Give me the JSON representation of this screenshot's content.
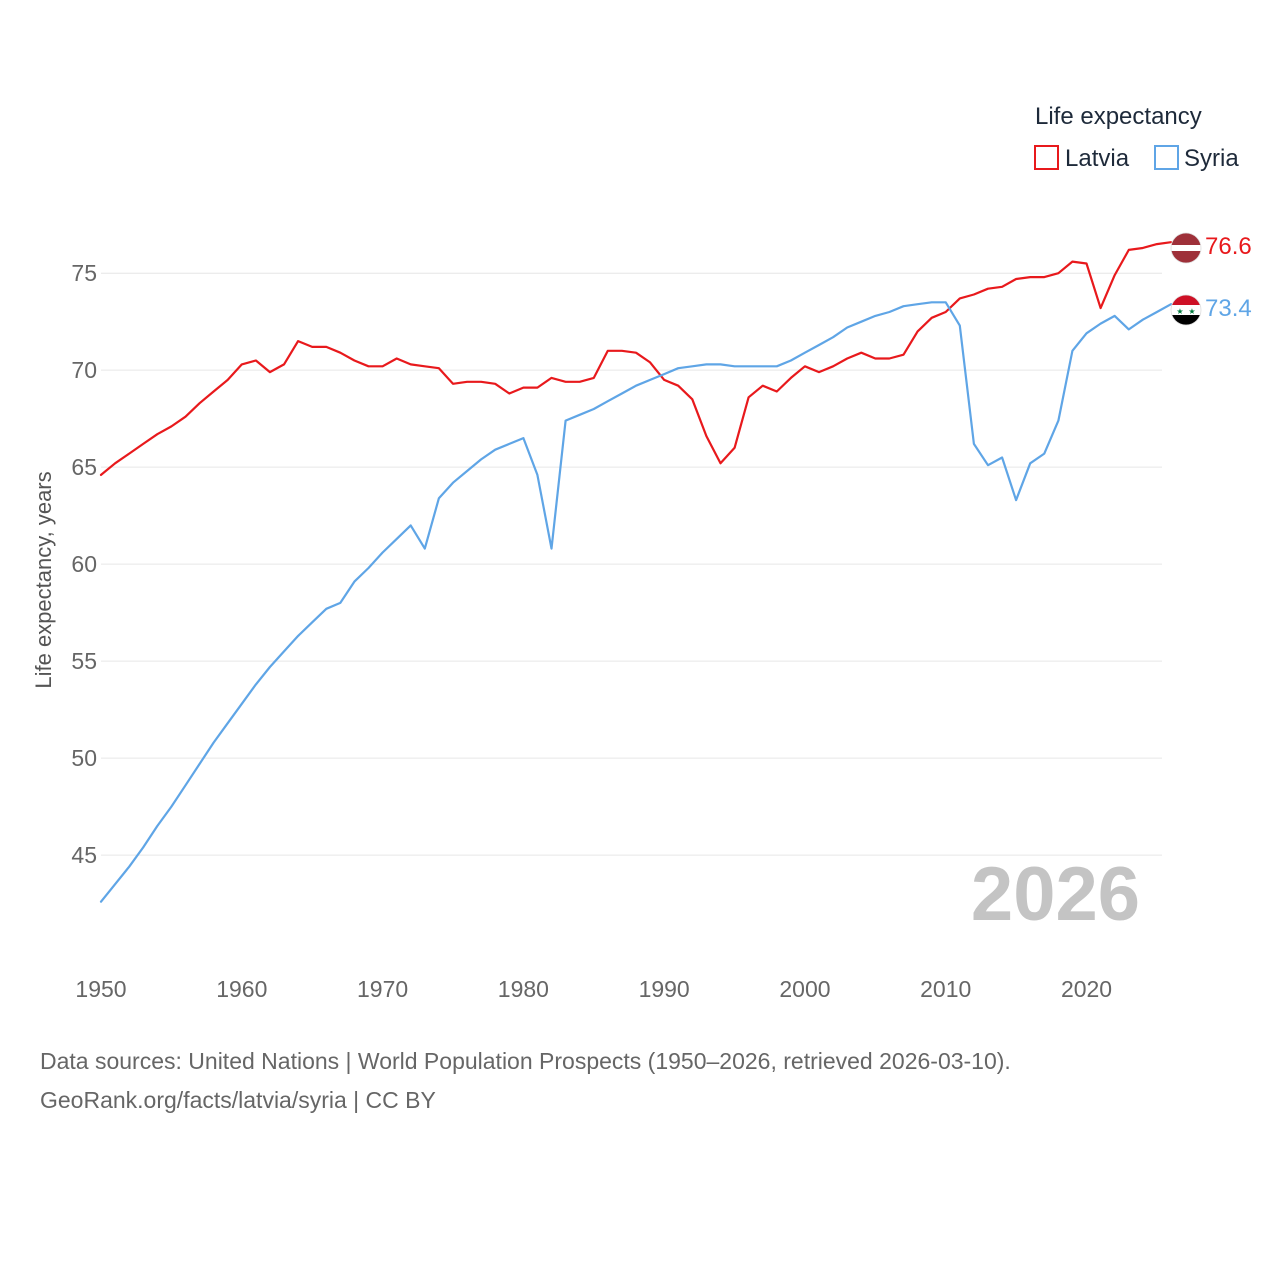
{
  "chart_data": {
    "type": "line",
    "ylabel": "Life expectancy, years",
    "xlim": [
      1950,
      2026
    ],
    "ylim": [
      41.5,
      78
    ],
    "xticks": [
      1950,
      1960,
      1970,
      1980,
      1990,
      2000,
      2010,
      2020
    ],
    "yticks": [
      45,
      50,
      55,
      60,
      65,
      70,
      75
    ],
    "year_label": "2026",
    "legend": {
      "title": "Life expectancy",
      "position": "top-right"
    },
    "x": [
      1950,
      1951,
      1952,
      1953,
      1954,
      1955,
      1956,
      1957,
      1958,
      1959,
      1960,
      1961,
      1962,
      1963,
      1964,
      1965,
      1966,
      1967,
      1968,
      1969,
      1970,
      1971,
      1972,
      1973,
      1974,
      1975,
      1976,
      1977,
      1978,
      1979,
      1980,
      1981,
      1982,
      1983,
      1984,
      1985,
      1986,
      1987,
      1988,
      1989,
      1990,
      1991,
      1992,
      1993,
      1994,
      1995,
      1996,
      1997,
      1998,
      1999,
      2000,
      2001,
      2002,
      2003,
      2004,
      2005,
      2006,
      2007,
      2008,
      2009,
      2010,
      2011,
      2012,
      2013,
      2014,
      2015,
      2016,
      2017,
      2018,
      2019,
      2020,
      2021,
      2022,
      2023,
      2024,
      2025,
      2026
    ],
    "series": [
      {
        "name": "Latvia",
        "color": "#e8191c",
        "end_label": "76.6",
        "flag": "latvia-flag-icon",
        "values": [
          64.6,
          65.2,
          65.7,
          66.2,
          66.7,
          67.1,
          67.6,
          68.3,
          68.9,
          69.5,
          70.3,
          70.5,
          69.9,
          70.3,
          71.5,
          71.2,
          71.2,
          70.9,
          70.5,
          70.2,
          70.2,
          70.6,
          70.3,
          70.2,
          70.1,
          69.3,
          69.4,
          69.4,
          69.3,
          68.8,
          69.1,
          69.1,
          69.6,
          69.4,
          69.4,
          69.6,
          71.0,
          71.0,
          70.9,
          70.4,
          69.5,
          69.2,
          68.5,
          66.6,
          65.2,
          66.0,
          68.6,
          69.2,
          68.9,
          69.6,
          70.2,
          69.9,
          70.2,
          70.6,
          70.9,
          70.6,
          70.6,
          70.8,
          72.0,
          72.7,
          73.0,
          73.7,
          73.9,
          74.2,
          74.3,
          74.7,
          74.8,
          74.8,
          75.0,
          75.6,
          75.5,
          73.2,
          74.9,
          76.2,
          76.3,
          76.5,
          76.6
        ]
      },
      {
        "name": "Syria",
        "color": "#5fa5e6",
        "end_label": "73.4",
        "flag": "syria-flag-icon",
        "values": [
          42.6,
          43.5,
          44.4,
          45.4,
          46.5,
          47.5,
          48.6,
          49.7,
          50.8,
          51.8,
          52.8,
          53.8,
          54.7,
          55.5,
          56.3,
          57.0,
          57.7,
          58.0,
          59.1,
          59.8,
          60.6,
          61.3,
          62.0,
          60.8,
          63.4,
          64.2,
          64.8,
          65.4,
          65.9,
          66.2,
          66.5,
          64.6,
          60.8,
          67.4,
          67.7,
          68.0,
          68.4,
          68.8,
          69.2,
          69.5,
          69.8,
          70.1,
          70.2,
          70.3,
          70.3,
          70.2,
          70.2,
          70.2,
          70.2,
          70.5,
          70.9,
          71.3,
          71.7,
          72.2,
          72.5,
          72.8,
          73.0,
          73.3,
          73.4,
          73.5,
          73.5,
          72.3,
          66.2,
          65.1,
          65.5,
          63.3,
          65.2,
          65.7,
          67.4,
          71.0,
          71.9,
          72.4,
          72.8,
          72.1,
          72.6,
          73.0,
          73.4
        ]
      }
    ]
  },
  "footer": {
    "sources": "Data sources: United Nations | World Population Prospects (1950–2026, retrieved 2026-03-10).",
    "attribution": "GeoRank.org/facts/latvia/syria | CC BY"
  }
}
